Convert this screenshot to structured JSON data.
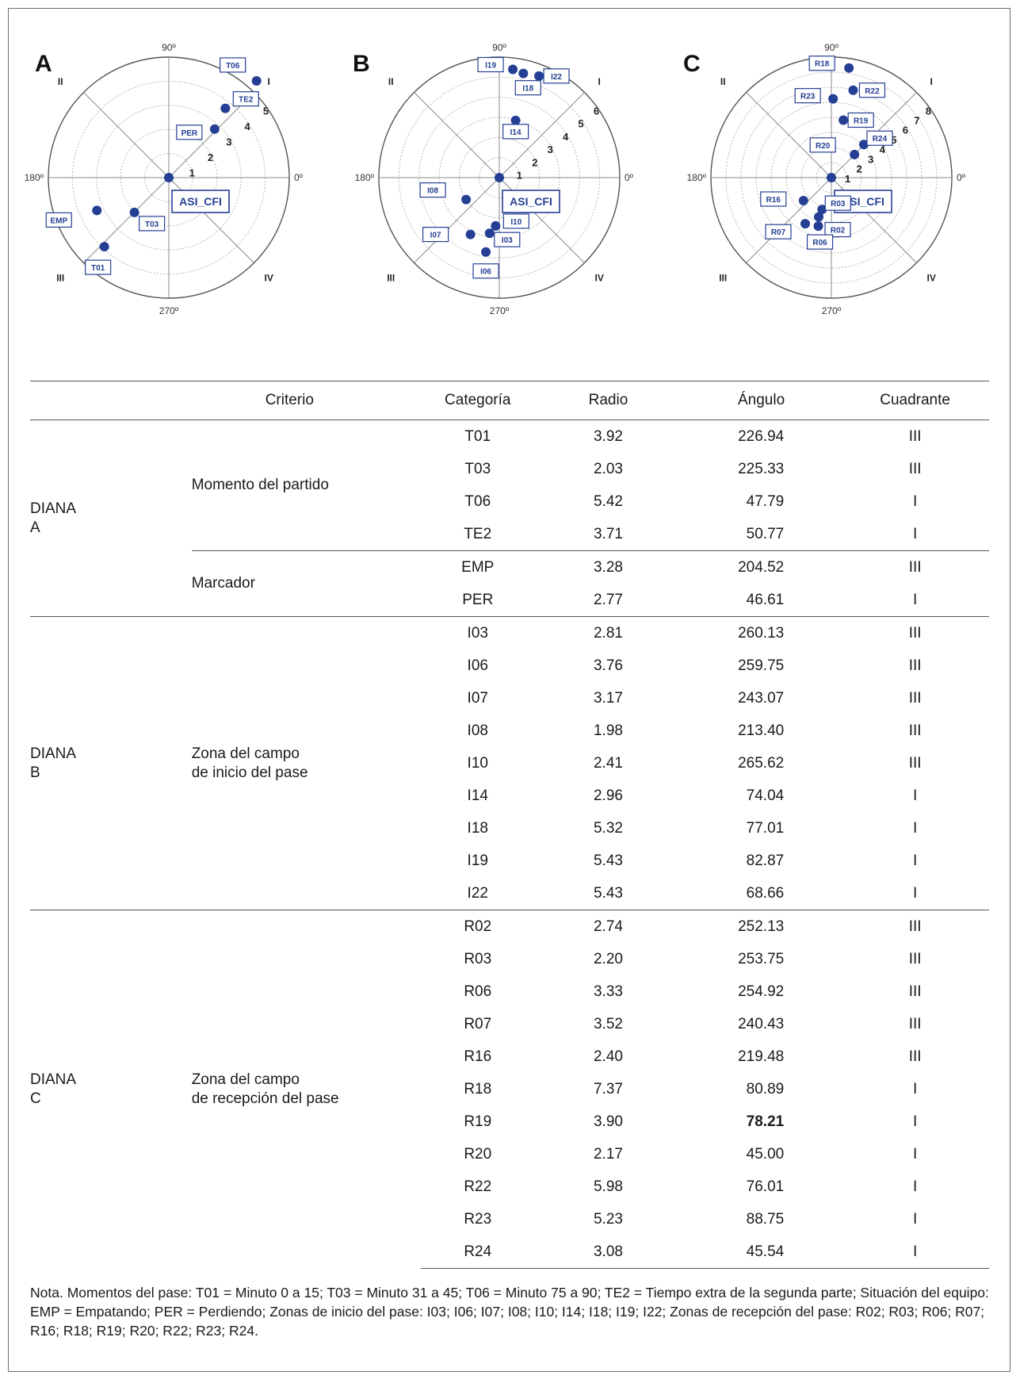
{
  "chart_data": [
    {
      "type": "scatter",
      "panel": "A",
      "center_label": "ASI_CFI",
      "rings": 5,
      "ring_labels": [
        "1",
        "2",
        "3",
        "4",
        "5"
      ],
      "angle_labels": [
        "90º",
        "180º",
        "270º",
        "0º"
      ],
      "quadrant_labels": [
        "I",
        "II",
        "III",
        "IV"
      ],
      "points": [
        {
          "label": "T01",
          "radius": 3.92,
          "angle": 226.94
        },
        {
          "label": "T03",
          "radius": 2.03,
          "angle": 225.33
        },
        {
          "label": "T06",
          "radius": 5.42,
          "angle": 47.79
        },
        {
          "label": "TE2",
          "radius": 3.71,
          "angle": 50.77
        },
        {
          "label": "EMP",
          "radius": 3.28,
          "angle": 204.52
        },
        {
          "label": "PER",
          "radius": 2.77,
          "angle": 46.61
        }
      ]
    },
    {
      "type": "scatter",
      "panel": "B",
      "center_label": "ASI_CFI",
      "rings": 6,
      "ring_labels": [
        "1",
        "2",
        "3",
        "4",
        "5",
        "6"
      ],
      "angle_labels": [
        "90º",
        "180º",
        "270º",
        "0º"
      ],
      "quadrant_labels": [
        "I",
        "II",
        "III",
        "IV"
      ],
      "points": [
        {
          "label": "I03",
          "radius": 2.81,
          "angle": 260.13
        },
        {
          "label": "I06",
          "radius": 3.76,
          "angle": 259.75
        },
        {
          "label": "I07",
          "radius": 3.17,
          "angle": 243.07
        },
        {
          "label": "I08",
          "radius": 1.98,
          "angle": 213.4
        },
        {
          "label": "I10",
          "radius": 2.41,
          "angle": 265.62
        },
        {
          "label": "I14",
          "radius": 2.96,
          "angle": 74.04
        },
        {
          "label": "I18",
          "radius": 5.32,
          "angle": 77.01
        },
        {
          "label": "I19",
          "radius": 5.43,
          "angle": 82.87
        },
        {
          "label": "I22",
          "radius": 5.43,
          "angle": 68.66
        }
      ]
    },
    {
      "type": "scatter",
      "panel": "C",
      "center_label": "ASI_CFI",
      "rings": 8,
      "ring_labels": [
        "1",
        "2",
        "3",
        "4",
        "5",
        "6",
        "7",
        "8"
      ],
      "angle_labels": [
        "90º",
        "180º",
        "270º",
        "0º"
      ],
      "quadrant_labels": [
        "I",
        "II",
        "III",
        "IV"
      ],
      "points": [
        {
          "label": "R02",
          "radius": 2.74,
          "angle": 252.13
        },
        {
          "label": "R03",
          "radius": 2.2,
          "angle": 253.75
        },
        {
          "label": "R06",
          "radius": 3.33,
          "angle": 254.92
        },
        {
          "label": "R07",
          "radius": 3.52,
          "angle": 240.43
        },
        {
          "label": "R16",
          "radius": 2.4,
          "angle": 219.48
        },
        {
          "label": "R18",
          "radius": 7.37,
          "angle": 80.89
        },
        {
          "label": "R19",
          "radius": 3.9,
          "angle": 78.21
        },
        {
          "label": "R20",
          "radius": 2.17,
          "angle": 45.0
        },
        {
          "label": "R22",
          "radius": 5.98,
          "angle": 76.01
        },
        {
          "label": "R23",
          "radius": 5.23,
          "angle": 88.75
        },
        {
          "label": "R24",
          "radius": 3.08,
          "angle": 45.54
        }
      ]
    }
  ],
  "table": {
    "headers": [
      "Criterio",
      "Categoría",
      "Radio",
      "Ángulo",
      "Cuadrante"
    ],
    "groups": [
      {
        "name": [
          "DIANA",
          "A"
        ],
        "subgroups": [
          {
            "criterio": [
              "Momento del partido"
            ],
            "rows": [
              [
                "T01",
                "3.92",
                "226.94",
                "III"
              ],
              [
                "T03",
                "2.03",
                "225.33",
                "III"
              ],
              [
                "T06",
                "5.42",
                "47.79",
                "I"
              ],
              [
                "TE2",
                "3.71",
                "50.77",
                "I"
              ]
            ]
          },
          {
            "criterio": [
              "Marcador"
            ],
            "rows": [
              [
                "EMP",
                "3.28",
                "204.52",
                "III"
              ],
              [
                "PER",
                "2.77",
                "46.61",
                "I"
              ]
            ]
          }
        ]
      },
      {
        "name": [
          "DIANA",
          "B"
        ],
        "subgroups": [
          {
            "criterio": [
              "Zona del campo",
              "de inicio del pase"
            ],
            "rows": [
              [
                "I03",
                "2.81",
                "260.13",
                "III"
              ],
              [
                "I06",
                "3.76",
                "259.75",
                "III"
              ],
              [
                "I07",
                "3.17",
                "243.07",
                "III"
              ],
              [
                "I08",
                "1.98",
                "213.40",
                "III"
              ],
              [
                "I10",
                "2.41",
                "265.62",
                "III"
              ],
              [
                "I14",
                "2.96",
                "74.04",
                "I"
              ],
              [
                "I18",
                "5.32",
                "77.01",
                "I"
              ],
              [
                "I19",
                "5.43",
                "82.87",
                "I"
              ],
              [
                "I22",
                "5.43",
                "68.66",
                "I"
              ]
            ]
          }
        ]
      },
      {
        "name": [
          "DIANA",
          "C"
        ],
        "subgroups": [
          {
            "criterio": [
              "Zona del campo",
              "de recepción del pase"
            ],
            "rows": [
              [
                "R02",
                "2.74",
                "252.13",
                "III"
              ],
              [
                "R03",
                "2.20",
                "253.75",
                "III"
              ],
              [
                "R06",
                "3.33",
                "254.92",
                "III"
              ],
              [
                "R07",
                "3.52",
                "240.43",
                "III"
              ],
              [
                "R16",
                "2.40",
                "219.48",
                "III"
              ],
              [
                "R18",
                "7.37",
                "80.89",
                "I"
              ],
              [
                "R19",
                "3.90",
                "78.21",
                "I"
              ],
              [
                "R20",
                "2.17",
                "45.00",
                "I"
              ],
              [
                "R22",
                "5.98",
                "76.01",
                "I"
              ],
              [
                "R23",
                "5.23",
                "88.75",
                "I"
              ],
              [
                "R24",
                "3.08",
                "45.54",
                "I"
              ]
            ]
          }
        ]
      }
    ]
  },
  "note": "Nota. Momentos del pase: T01 = Minuto 0 a 15; T03 = Minuto 31 a 45; T06 = Minuto 75 a 90; TE2 = Tiempo extra de la segunda parte; Situación del equipo: EMP = Empatando; PER = Perdiendo; Zonas de inicio del pase: I03; I06; I07; I08; I10; I14; I18; I19; I22; Zonas de recepción del pase: R02; R03; R06; R07; R16; R18; R19; R20; R22; R23; R24.",
  "colors": {
    "point": "#243f94",
    "label_border": "#243f94",
    "axis": "#7a7a7a"
  }
}
